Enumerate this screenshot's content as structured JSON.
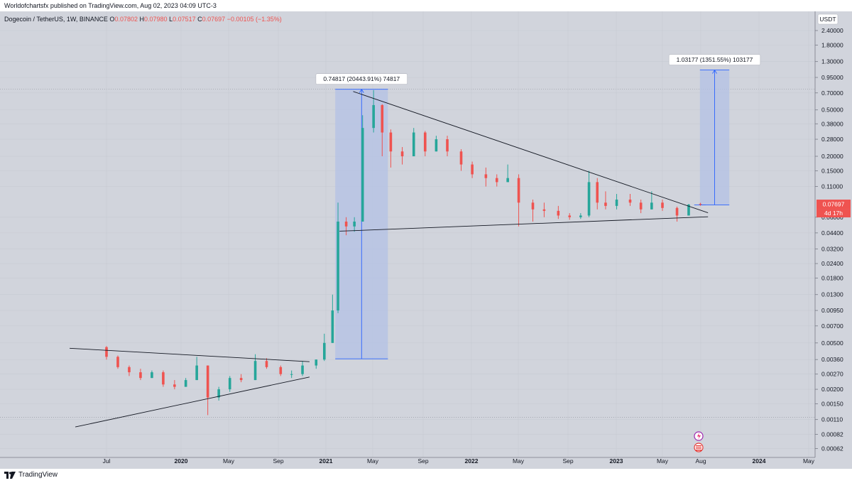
{
  "header": {
    "publisher_text": "Worldofchartsfx published on TradingView.com, Aug 02, 2023 04:09 UTC-3",
    "symbol": "Dogecoin / TetherUS, 1W, BINANCE",
    "ohlc": {
      "o_label": "O",
      "o": "0.07802",
      "h_label": "H",
      "h": "0.07980",
      "l_label": "L",
      "l": "0.07517",
      "c_label": "C",
      "c": "0.07697",
      "change": "−0.00105 (−1.35%)"
    }
  },
  "footer": {
    "brand": "TradingView"
  },
  "colors": {
    "up": "#26a69a",
    "down": "#ef5350",
    "background": "#d1d4dc",
    "measure_fill": "#b3c1e6",
    "measure_line": "#2962ff"
  },
  "icons": [
    "tradingview-logo-icon",
    "flash-icon",
    "us-flag-icon"
  ],
  "chart_data": {
    "type": "candlestick",
    "scale": "log",
    "interval": "1W",
    "currency_button": "USDT",
    "current_price_label": "0.07697",
    "countdown_label": "4d 17h",
    "y_ticks": [
      "2.40000",
      "1.80000",
      "1.30000",
      "0.95000",
      "0.70000",
      "0.50000",
      "0.38000",
      "0.28000",
      "0.20000",
      "0.15000",
      "0.11000",
      "0.06000",
      "0.04400",
      "0.03200",
      "0.02400",
      "0.01800",
      "0.01300",
      "0.00950",
      "0.00700",
      "0.00500",
      "0.00360",
      "0.00270",
      "0.00200",
      "0.00150",
      "0.00110",
      "0.00082",
      "0.00062"
    ],
    "x_ticks": [
      {
        "label": "Jul",
        "date": "2019-07",
        "bold": false
      },
      {
        "label": "2020",
        "date": "2020-01",
        "bold": true
      },
      {
        "label": "May",
        "date": "2020-05",
        "bold": false
      },
      {
        "label": "Sep",
        "date": "2020-09",
        "bold": false
      },
      {
        "label": "2021",
        "date": "2021-01",
        "bold": true
      },
      {
        "label": "May",
        "date": "2021-05",
        "bold": false
      },
      {
        "label": "Sep",
        "date": "2021-09",
        "bold": false
      },
      {
        "label": "2022",
        "date": "2022-01",
        "bold": true
      },
      {
        "label": "May",
        "date": "2022-05",
        "bold": false
      },
      {
        "label": "Sep",
        "date": "2022-09",
        "bold": false
      },
      {
        "label": "2023",
        "date": "2023-01",
        "bold": true
      },
      {
        "label": "May",
        "date": "2023-05",
        "bold": false
      },
      {
        "label": "Aug",
        "date": "2023-08",
        "bold": false
      },
      {
        "label": "2024",
        "date": "2024-01",
        "bold": true
      },
      {
        "label": "May",
        "date": "2024-05",
        "bold": false
      }
    ],
    "measurements": [
      {
        "label": "0.74817 (20443.91%) 74817",
        "from_date": "2021-01-25",
        "to_date": "2021-06-07",
        "low": 0.00365,
        "high": 0.7518
      },
      {
        "label": "1.03177 (1351.55%) 103177",
        "from_date": "2023-07-30",
        "to_date": "2023-10-15",
        "low": 0.0765,
        "high": 1.1
      },
      {
        "label": "",
        "from_date": "2023-07-30",
        "to_date": "2023-07-30",
        "low": 0.0765,
        "high": 0.0765
      }
    ],
    "trendlines": [
      {
        "from": [
          "2019-04-01",
          0.0045
        ],
        "to": [
          "2020-11-20",
          0.00345
        ]
      },
      {
        "from": [
          "2019-04-15",
          0.00095
        ],
        "to": [
          "2020-11-20",
          0.00255
        ]
      },
      {
        "from": [
          "2021-03-12",
          0.72
        ],
        "to": [
          "2023-08-20",
          0.0655
        ]
      },
      {
        "from": [
          "2021-02-05",
          0.0455
        ],
        "to": [
          "2023-08-20",
          0.0605
        ]
      }
    ],
    "ohlc_series": [
      [
        "2019-07-01",
        0.0046,
        0.0047,
        0.0036,
        0.0038
      ],
      [
        "2019-07-29",
        0.0038,
        0.0039,
        0.003,
        0.0031
      ],
      [
        "2019-08-26",
        0.0031,
        0.0032,
        0.0026,
        0.0028
      ],
      [
        "2019-09-23",
        0.0028,
        0.003,
        0.0024,
        0.0025
      ],
      [
        "2019-10-21",
        0.0025,
        0.0029,
        0.0025,
        0.0028
      ],
      [
        "2019-11-18",
        0.0028,
        0.0029,
        0.0021,
        0.0022
      ],
      [
        "2019-12-16",
        0.0022,
        0.0024,
        0.002,
        0.0021
      ],
      [
        "2020-01-13",
        0.0021,
        0.0025,
        0.0021,
        0.0024
      ],
      [
        "2020-02-10",
        0.0024,
        0.0038,
        0.0024,
        0.0032
      ],
      [
        "2020-03-09",
        0.0032,
        0.0032,
        0.0012,
        0.0017
      ],
      [
        "2020-04-06",
        0.0017,
        0.0021,
        0.0016,
        0.002
      ],
      [
        "2020-05-04",
        0.002,
        0.0026,
        0.0019,
        0.0025
      ],
      [
        "2020-06-01",
        0.0025,
        0.0027,
        0.0023,
        0.0024
      ],
      [
        "2020-07-06",
        0.0024,
        0.004,
        0.0024,
        0.0035
      ],
      [
        "2020-08-03",
        0.0035,
        0.0037,
        0.003,
        0.0031
      ],
      [
        "2020-09-07",
        0.0031,
        0.0032,
        0.0026,
        0.0027
      ],
      [
        "2020-10-05",
        0.0027,
        0.0029,
        0.0025,
        0.0027
      ],
      [
        "2020-11-02",
        0.0027,
        0.0035,
        0.0026,
        0.0032
      ],
      [
        "2020-12-07",
        0.0032,
        0.0036,
        0.003,
        0.0036
      ],
      [
        "2020-12-28",
        0.0036,
        0.006,
        0.0035,
        0.005
      ],
      [
        "2021-01-18",
        0.005,
        0.013,
        0.005,
        0.0095
      ],
      [
        "2021-02-01",
        0.0095,
        0.08,
        0.009,
        0.055
      ],
      [
        "2021-02-22",
        0.055,
        0.06,
        0.042,
        0.05
      ],
      [
        "2021-03-15",
        0.05,
        0.06,
        0.045,
        0.055
      ],
      [
        "2021-04-05",
        0.055,
        0.45,
        0.055,
        0.35
      ],
      [
        "2021-05-03",
        0.35,
        0.74,
        0.32,
        0.55
      ],
      [
        "2021-05-24",
        0.55,
        0.56,
        0.2,
        0.32
      ],
      [
        "2021-06-14",
        0.32,
        0.34,
        0.16,
        0.22
      ],
      [
        "2021-07-12",
        0.22,
        0.24,
        0.17,
        0.2
      ],
      [
        "2021-08-09",
        0.2,
        0.35,
        0.2,
        0.32
      ],
      [
        "2021-09-06",
        0.32,
        0.33,
        0.2,
        0.22
      ],
      [
        "2021-10-04",
        0.22,
        0.3,
        0.22,
        0.28
      ],
      [
        "2021-11-01",
        0.28,
        0.3,
        0.2,
        0.22
      ],
      [
        "2021-12-06",
        0.22,
        0.23,
        0.15,
        0.17
      ],
      [
        "2022-01-03",
        0.17,
        0.18,
        0.13,
        0.14
      ],
      [
        "2022-02-07",
        0.14,
        0.16,
        0.11,
        0.13
      ],
      [
        "2022-03-07",
        0.13,
        0.14,
        0.11,
        0.12
      ],
      [
        "2022-04-04",
        0.12,
        0.17,
        0.12,
        0.13
      ],
      [
        "2022-05-02",
        0.13,
        0.14,
        0.05,
        0.08
      ],
      [
        "2022-06-06",
        0.08,
        0.085,
        0.055,
        0.07
      ],
      [
        "2022-07-04",
        0.07,
        0.08,
        0.06,
        0.068
      ],
      [
        "2022-08-08",
        0.068,
        0.075,
        0.058,
        0.062
      ],
      [
        "2022-09-05",
        0.062,
        0.065,
        0.057,
        0.06
      ],
      [
        "2022-10-03",
        0.06,
        0.065,
        0.058,
        0.062
      ],
      [
        "2022-10-24",
        0.062,
        0.15,
        0.06,
        0.12
      ],
      [
        "2022-11-14",
        0.12,
        0.13,
        0.07,
        0.08
      ],
      [
        "2022-12-05",
        0.08,
        0.1,
        0.07,
        0.075
      ],
      [
        "2023-01-02",
        0.075,
        0.095,
        0.07,
        0.085
      ],
      [
        "2023-02-06",
        0.085,
        0.095,
        0.075,
        0.08
      ],
      [
        "2023-03-06",
        0.08,
        0.085,
        0.065,
        0.07
      ],
      [
        "2023-04-03",
        0.07,
        0.1,
        0.07,
        0.08
      ],
      [
        "2023-05-01",
        0.08,
        0.085,
        0.068,
        0.072
      ],
      [
        "2023-06-05",
        0.072,
        0.074,
        0.055,
        0.062
      ],
      [
        "2023-07-03",
        0.062,
        0.078,
        0.062,
        0.077
      ],
      [
        "2023-07-31",
        0.07802,
        0.0798,
        0.07517,
        0.07697
      ]
    ]
  }
}
